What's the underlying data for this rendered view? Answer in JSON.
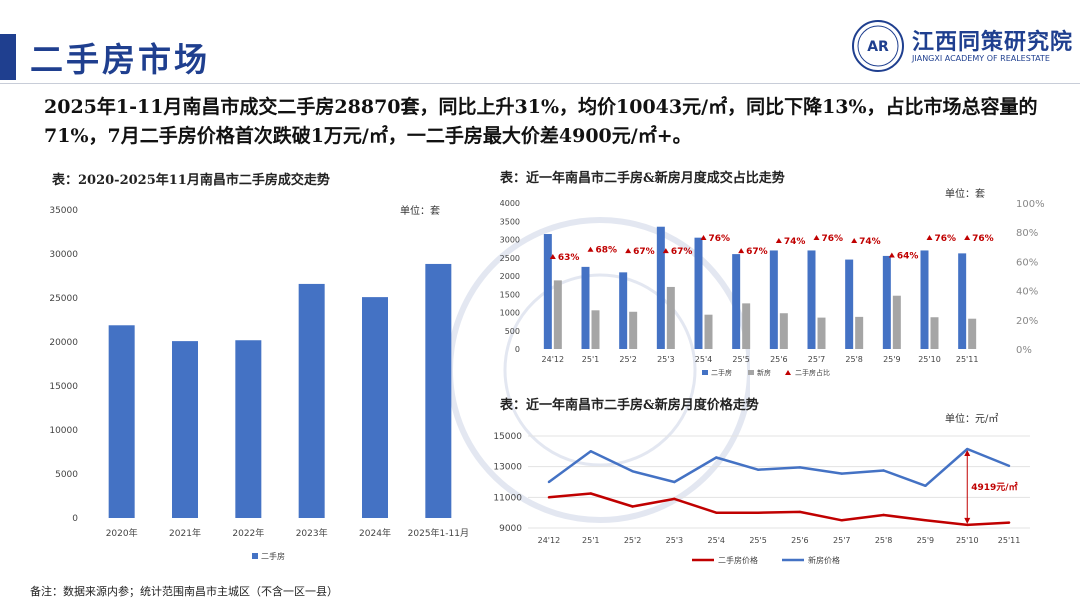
{
  "header": {
    "page_title": "二手房市场",
    "logo_mark": "AR",
    "logo_name": "江西同策研究院",
    "logo_en": "JIANGXI ACADEMY OF REALESTATE"
  },
  "summary": "2025年1-11月南昌市成交二手房28870套，同比上升31%，均价10043元/㎡，同比下降13%，占比市场总容量的71%，7月二手房价格首次跌破1万元/㎡，一二手房最大价差4900元/㎡+。",
  "footnote": "备注：数据来源内参；统计范围南昌市主城区（不含一区一县）",
  "colors": {
    "blue": "#4472c4",
    "gray": "#a5a5a5",
    "red": "#c00000",
    "brand": "#1f3f8f"
  },
  "chart_data": [
    {
      "type": "bar",
      "title": "表：2020-2025年11月南昌市二手房成交走势",
      "unit": "单位：套",
      "categories": [
        "2020年",
        "2021年",
        "2022年",
        "2023年",
        "2024年",
        "2025年1-11月"
      ],
      "series": [
        {
          "name": "二手房",
          "values": [
            21900,
            20100,
            20200,
            26600,
            25100,
            28870
          ]
        }
      ],
      "ylim": [
        0,
        35000
      ],
      "yticks": [
        "0",
        "5000",
        "10000",
        "15000",
        "20000",
        "25000",
        "30000",
        "35000"
      ],
      "legend": "bottom",
      "grid": false
    },
    {
      "type": "bar",
      "title": "表：近一年南昌市二手房&新房月度成交占比走势",
      "unit": "单位：套",
      "categories": [
        "24'12",
        "25'1",
        "25'2",
        "25'3",
        "25'4",
        "25'5",
        "25'6",
        "25'7",
        "25'8",
        "25'9",
        "25'10",
        "25'11"
      ],
      "series": [
        {
          "name": "二手房",
          "values": [
            3150,
            2250,
            2100,
            3350,
            3050,
            2600,
            2700,
            2700,
            2450,
            2550,
            2700,
            2620
          ]
        },
        {
          "name": "新房",
          "values": [
            1880,
            1060,
            1020,
            1700,
            940,
            1250,
            980,
            860,
            880,
            1460,
            870,
            830
          ]
        },
        {
          "name": "二手房占比",
          "type": "scatter",
          "axis": "right",
          "values": [
            63,
            68,
            67,
            67,
            76,
            67,
            74,
            76,
            74,
            64,
            76,
            76
          ],
          "labels": [
            "63%",
            "68%",
            "67%",
            "67%",
            "76%",
            "67%",
            "74%",
            "76%",
            "74%",
            "64%",
            "76%",
            "76%"
          ]
        }
      ],
      "ylim": [
        0,
        4000
      ],
      "yticks": [
        "0",
        "500",
        "1000",
        "1500",
        "2000",
        "2500",
        "3000",
        "3500",
        "4000"
      ],
      "y2lim": [
        0,
        100
      ],
      "y2ticks": [
        "0%",
        "20%",
        "40%",
        "60%",
        "80%",
        "100%"
      ],
      "legend": "bottom",
      "grid": false
    },
    {
      "type": "line",
      "title": "表：近一年南昌市二手房&新房月度价格走势",
      "unit": "单位：元/㎡",
      "categories": [
        "24'12",
        "25'1",
        "25'2",
        "25'3",
        "25'4",
        "25'5",
        "25'6",
        "25'7",
        "25'8",
        "25'9",
        "25'10",
        "25'11"
      ],
      "series": [
        {
          "name": "二手房价格",
          "values": [
            11000,
            11250,
            10400,
            10900,
            10000,
            10000,
            10050,
            9500,
            9850,
            9500,
            9200,
            9350
          ]
        },
        {
          "name": "新房价格",
          "values": [
            12000,
            14000,
            12700,
            12000,
            13600,
            12800,
            12950,
            12550,
            12750,
            11750,
            14150,
            13050
          ]
        }
      ],
      "ylim": [
        9000,
        15000
      ],
      "yticks": [
        "9000",
        "11000",
        "13000",
        "15000"
      ],
      "annotation": {
        "text": "4919元/㎡",
        "category": "25'10"
      },
      "legend": "bottom",
      "grid": true
    }
  ]
}
